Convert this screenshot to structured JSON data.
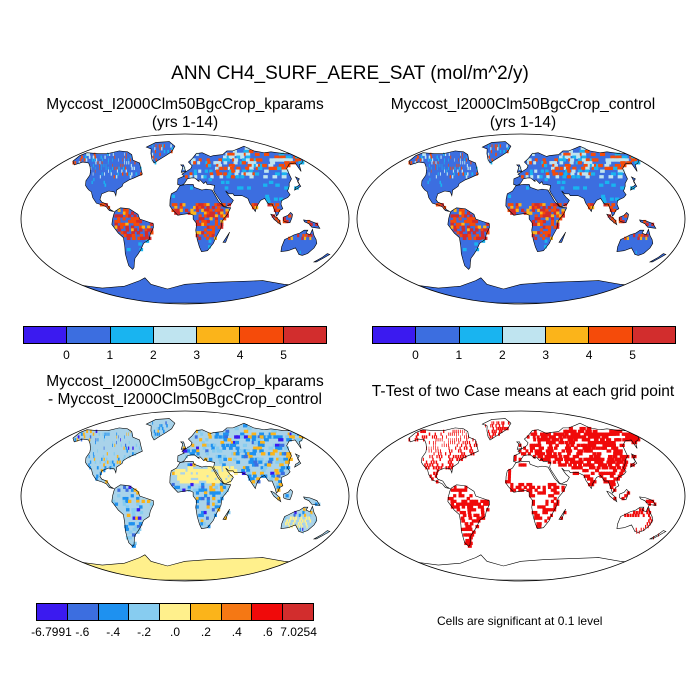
{
  "main_title": "ANN CH4_SURF_AERE_SAT (mol/m^2/y)",
  "panels": {
    "kparams": {
      "title_line1": "Myccost_I2000Clm50BgcCrop_kparams",
      "title_line2": "(yrs 1-14)"
    },
    "control": {
      "title_line1": "Myccost_I2000Clm50BgcCrop_control",
      "title_line2": "(yrs 1-14)"
    },
    "diff": {
      "title_line1": "Myccost_I2000Clm50BgcCrop_kparams",
      "title_line2": "- Myccost_I2000Clm50BgcCrop_control"
    },
    "ttest": {
      "title": "T-Test of two Case means at each grid point",
      "note": "Cells are significant at 0.1 level"
    }
  },
  "colorbar_abs": {
    "colors": [
      "#3b1af0",
      "#3c6ee0",
      "#19b4f0",
      "#bfe4f0",
      "#fbb41a",
      "#f54b0a",
      "#d22d2d"
    ],
    "labels": [
      "0",
      "1",
      "2",
      "3",
      "4",
      "5"
    ]
  },
  "colorbar_diff": {
    "colors": [
      "#3b1af0",
      "#3c6ee0",
      "#1e91f0",
      "#87ccf0",
      "#fff08c",
      "#fbb41a",
      "#f57814",
      "#f00a0a",
      "#d22d2d"
    ],
    "labels": [
      "-6.7991",
      "-.6",
      "-.4",
      "-.2",
      ".0",
      ".2",
      ".4",
      ".6",
      "7.0254"
    ]
  },
  "map_colors": {
    "ocean": "#ffffff",
    "land_base_abs": "#3c6ee0",
    "land_base_diff": "#a9d3ea",
    "significant": "#f00a0a"
  }
}
